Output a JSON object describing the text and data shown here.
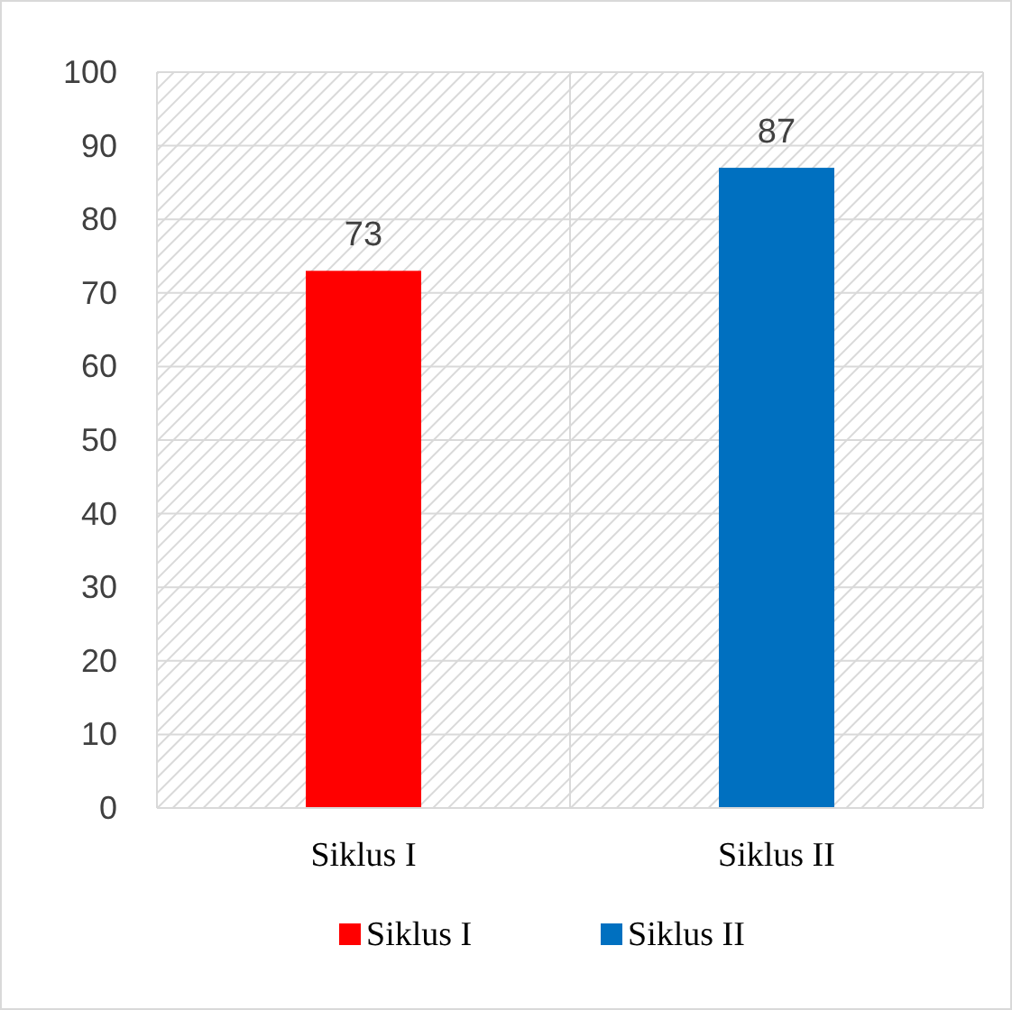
{
  "chart_data": {
    "type": "bar",
    "categories": [
      "Siklus I",
      "Siklus II"
    ],
    "series": [
      {
        "name": "Siklus I",
        "color": "#ff0000",
        "values": [
          73,
          null
        ]
      },
      {
        "name": "Siklus II",
        "color": "#0070c0",
        "values": [
          null,
          87
        ]
      }
    ],
    "ylim": [
      0,
      100
    ],
    "yticks": [
      0,
      10,
      20,
      30,
      40,
      50,
      60,
      70,
      80,
      90,
      100
    ],
    "grid": "y",
    "data_labels": true,
    "legend": "bottom"
  }
}
